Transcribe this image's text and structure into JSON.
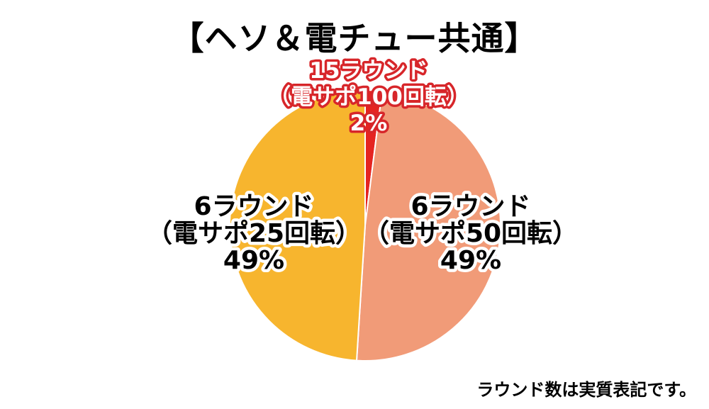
{
  "chart_data": {
    "type": "pie",
    "title": "【ヘソ＆電チュー共通】",
    "slices": [
      {
        "label_lines": [
          "15ラウンド",
          "（電サポ100回転）"
        ],
        "percent_label": "2%",
        "value": 2,
        "color": "#e52421",
        "label_fill": "#ffffff",
        "label_stroke": "#d7262a"
      },
      {
        "label_lines": [
          "6ラウンド",
          "（電サポ50回転）"
        ],
        "percent_label": "49%",
        "value": 49,
        "color": "#f19b78",
        "label_fill": "#000000",
        "label_stroke": "#ffffff"
      },
      {
        "label_lines": [
          "6ラウンド",
          "（電サポ25回転）"
        ],
        "percent_label": "49%",
        "value": 49,
        "color": "#f7b52e",
        "label_fill": "#000000",
        "label_stroke": "#ffffff"
      }
    ],
    "start": "top",
    "direction": "clockwise"
  },
  "footnote": "ラウンド数は実質表記です。"
}
